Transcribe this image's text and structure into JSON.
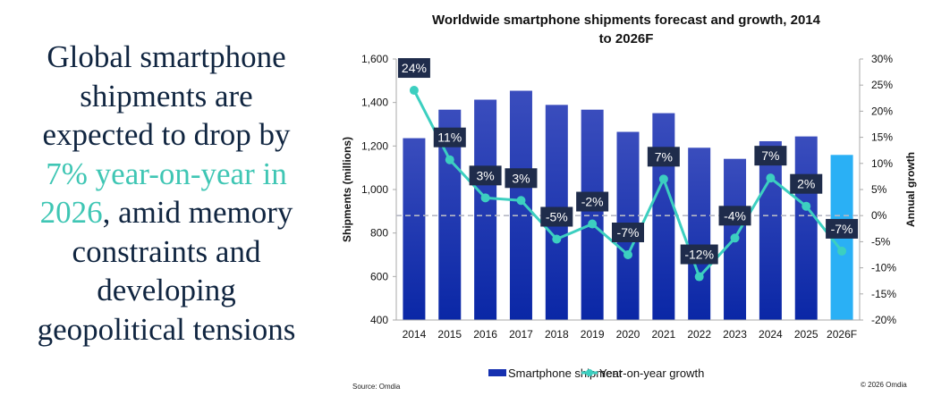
{
  "headline": {
    "lines": [
      "Global smartphone",
      "shipments are",
      "expected to drop by"
    ],
    "accent_line": "7% year-on-year in",
    "accent_word": "2026",
    "after_accent": ", amid memory",
    "tail_lines": [
      "constraints and",
      "developing",
      "geopolitical tensions"
    ],
    "text_color": "#102540",
    "accent_color": "#3fc6b4"
  },
  "chart_data": {
    "type": "bar+line",
    "title_lines": [
      "Worldwide smartphone shipments forecast and growth, 2014",
      "to 2026F"
    ],
    "categories": [
      "2014",
      "2015",
      "2016",
      "2017",
      "2018",
      "2019",
      "2020",
      "2021",
      "2022",
      "2023",
      "2024",
      "2025",
      "2026F"
    ],
    "ylabel": "Shipments (millions)",
    "y2label": "Annual growth",
    "ylim": [
      400,
      1600
    ],
    "yticks": [
      "400",
      "600",
      "800",
      "1,000",
      "1,200",
      "1,400",
      "1,600"
    ],
    "y2lim": [
      -20,
      30
    ],
    "y2ticks": [
      "-20%",
      "-15%",
      "-10%",
      "-5%",
      "0%",
      "5%",
      "10%",
      "15%",
      "20%",
      "25%",
      "30%"
    ],
    "series": [
      {
        "name": "Smartphone shipment",
        "type": "bar",
        "axis": "left",
        "values": [
          1236,
          1367,
          1413,
          1454,
          1389,
          1367,
          1265,
          1351,
          1192,
          1141,
          1222,
          1244,
          1159
        ],
        "color": "#1530b0",
        "forecast_color": "#2ab0f5"
      },
      {
        "name": "Year-on-year growth",
        "type": "line",
        "axis": "right",
        "values": [
          24,
          10.7,
          3.4,
          2.9,
          -4.5,
          -1.6,
          -7.5,
          7,
          -11.7,
          -4.3,
          7.2,
          1.8,
          -6.8
        ],
        "labels": [
          "24%",
          "11%",
          "3%",
          "3%",
          "-5%",
          "-2%",
          "-7%",
          "7%",
          "-12%",
          "-4%",
          "7%",
          "2%",
          "-7%"
        ],
        "color": "#3ccfc0"
      }
    ],
    "zero_line": "dashed",
    "grid": false,
    "legend": "bottom",
    "source": "Source: Omdia",
    "copyright": "© 2026 Omdia"
  }
}
